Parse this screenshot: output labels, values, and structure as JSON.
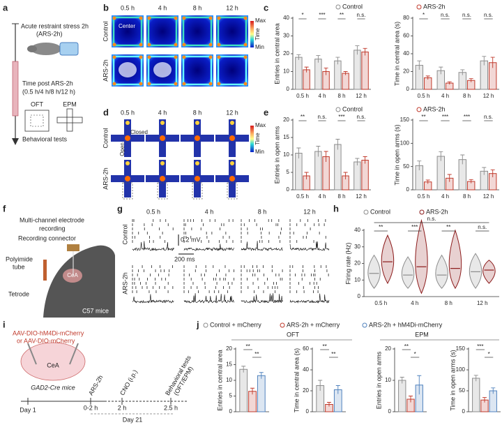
{
  "panels": {
    "letters": [
      "a",
      "b",
      "c",
      "d",
      "e",
      "f",
      "g",
      "h",
      "i",
      "j"
    ],
    "a": {
      "stress": "Acute restraint stress 2h",
      "stress_abbr": "(ARS-2h)",
      "time": "Time post ARS-2h",
      "timepoints": "(0.5 h/4 h/8 h/12 h)",
      "oft": "OFT",
      "epm": "EPM",
      "tests": "Behavioral tests"
    },
    "b": {
      "times": [
        "0.5 h",
        "4 h",
        "8 h",
        "12 h"
      ],
      "rows": [
        "Control",
        "ARS-2h"
      ],
      "center": "Center",
      "scale": [
        "Max",
        "Time",
        "Min"
      ]
    },
    "d": {
      "times": [
        "0.5 h",
        "4 h",
        "8 h",
        "12 h"
      ],
      "rows": [
        "Control",
        "ARS-2h"
      ],
      "closed": "Closed",
      "open": "Open",
      "scale": [
        "Max",
        "Time",
        "Min"
      ]
    },
    "f": {
      "lines": [
        "Multi-channel electrode",
        "recording"
      ],
      "connector": "Recording connector",
      "tube": [
        "Polyimide",
        "tube"
      ],
      "region": "CeA",
      "tetrode": "Tetrode",
      "strain": "C57 mice"
    },
    "g": {
      "times": [
        "0.5 h",
        "4 h",
        "8 h",
        "12 h"
      ],
      "rows": [
        "Control",
        "ARS-2h"
      ],
      "scale_v": "0.2 mV",
      "scale_t": "200 ms"
    },
    "i": {
      "virus": [
        "AAV-DIO-hM4Di-mCherry",
        "or AAV-DIO-mCherry"
      ],
      "region": "CeA",
      "strain": "GAD2-Cre mice",
      "events": [
        "ARS-2h",
        "CNO (i.p.)",
        "Behavioral tests",
        "(OFT/EPM)"
      ],
      "times": [
        "Day 1",
        "0-2 h",
        "2 h",
        "2.5 h"
      ],
      "day": "Day 21"
    },
    "j": {
      "groups": [
        "OFT",
        "EPM"
      ]
    }
  },
  "chart_data": [
    {
      "type": "bar",
      "ylabel": "Entries in central area",
      "categories": [
        "0.5 h",
        "4 h",
        "8 h",
        "12 h"
      ],
      "series": [
        {
          "name": "Control",
          "color": "#8c8c8c",
          "values": [
            18,
            17,
            16,
            22
          ],
          "errors": [
            1.5,
            2,
            2,
            2.5
          ]
        },
        {
          "name": "ARS-2h",
          "color": "#c0392b",
          "values": [
            11,
            10,
            9,
            21
          ],
          "errors": [
            1.5,
            2,
            1,
            2
          ]
        }
      ],
      "annotations": [
        "*",
        "***",
        "**",
        "n.s."
      ],
      "ylim": [
        0,
        40
      ],
      "yticks": [
        0,
        10,
        20,
        30,
        40
      ]
    },
    {
      "type": "bar",
      "ylabel": "Time in central area (s)",
      "categories": [
        "0.5 h",
        "4 h",
        "8 h",
        "12 h"
      ],
      "series": [
        {
          "color": "#8c8c8c",
          "values": [
            27,
            21,
            19,
            32
          ],
          "errors": [
            5,
            4,
            3,
            5
          ]
        },
        {
          "color": "#c0392b",
          "values": [
            13,
            7,
            10,
            30
          ],
          "errors": [
            2,
            1.5,
            2,
            6
          ]
        }
      ],
      "annotations": [
        "*",
        "n.s.",
        "n.s.",
        "n.s."
      ],
      "ylim": [
        0,
        80
      ],
      "yticks": [
        0,
        20,
        40,
        60,
        80
      ]
    },
    {
      "type": "bar",
      "ylabel": "Entries in open arms",
      "categories": [
        "0.5 h",
        "4 h",
        "8 h",
        "12 h"
      ],
      "series": [
        {
          "name": "Control",
          "color": "#8c8c8c",
          "values": [
            10.5,
            11,
            13,
            8
          ],
          "errors": [
            1.5,
            1.5,
            1.5,
            1
          ]
        },
        {
          "name": "ARS-2h",
          "color": "#c0392b",
          "values": [
            4,
            9.5,
            4,
            8.5
          ],
          "errors": [
            1,
            1.5,
            1,
            1
          ]
        }
      ],
      "annotations": [
        "**",
        "n.s.",
        "***",
        "n.s."
      ],
      "ylim": [
        0,
        20
      ],
      "yticks": [
        0,
        5,
        10,
        15,
        20
      ]
    },
    {
      "type": "bar",
      "ylabel": "Time in open arms (s)",
      "categories": [
        "0.5 h",
        "4 h",
        "8 h",
        "12 h"
      ],
      "series": [
        {
          "color": "#8c8c8c",
          "values": [
            52,
            72,
            65,
            40
          ],
          "errors": [
            10,
            10,
            10,
            8
          ]
        },
        {
          "color": "#c0392b",
          "values": [
            17,
            25,
            18,
            35
          ],
          "errors": [
            4,
            8,
            4,
            8
          ]
        }
      ],
      "annotations": [
        "**",
        "***",
        "***",
        "n.s."
      ],
      "ylim": [
        0,
        150
      ],
      "yticks": [
        0,
        50,
        100,
        150
      ]
    },
    {
      "type": "violin",
      "ylabel": "Firing rate (Hz)",
      "categories": [
        "0.5 h",
        "4 h",
        "8 h",
        "12 h"
      ],
      "series": [
        {
          "name": "Control",
          "color": "#8c8c8c",
          "values": [
            14,
            13,
            13,
            15
          ],
          "min": [
            5,
            5,
            5,
            5
          ],
          "max": [
            25,
            24,
            25,
            26
          ]
        },
        {
          "name": "ARS-2h",
          "color": "#8b1a1a",
          "values": [
            21,
            18,
            17,
            16
          ],
          "min": [
            8,
            2,
            5,
            8
          ],
          "max": [
            37,
            46,
            40,
            22
          ]
        }
      ],
      "annotations": [
        "**",
        "***",
        "**",
        "n.s."
      ],
      "overall_annotation": "n.s.",
      "ylim": [
        0,
        40
      ],
      "yticks": [
        0,
        10,
        20,
        30,
        40
      ]
    },
    {
      "type": "bar",
      "ylabel": "Entries in central area",
      "categories": [
        null
      ],
      "series": [
        {
          "name": "Control + mCherry",
          "color": "#8c8c8c",
          "values": [
            13.5
          ],
          "errors": [
            1
          ]
        },
        {
          "name": "ARS-2h + mCherry",
          "color": "#c0392b",
          "values": [
            6.5
          ],
          "errors": [
            1
          ]
        },
        {
          "name": "ARS-2h + hM4Di-mCherry",
          "color": "#4f81bd",
          "values": [
            11.5
          ],
          "errors": [
            1
          ]
        }
      ],
      "comparisons": [
        "**",
        "**"
      ],
      "ylim": [
        0,
        20
      ],
      "yticks": [
        0,
        5,
        10,
        15,
        20
      ]
    },
    {
      "type": "bar",
      "ylabel": "Time in central area (s)",
      "categories": [
        null
      ],
      "series": [
        {
          "color": "#8c8c8c",
          "values": [
            25
          ],
          "errors": [
            5
          ]
        },
        {
          "color": "#c0392b",
          "values": [
            7
          ],
          "errors": [
            2
          ]
        },
        {
          "color": "#4f81bd",
          "values": [
            21
          ],
          "errors": [
            4
          ]
        }
      ],
      "comparisons": [
        "**",
        "**"
      ],
      "ylim": [
        0,
        60
      ],
      "yticks": [
        0,
        20,
        40,
        60
      ]
    },
    {
      "type": "bar",
      "ylabel": "Entries in open arms",
      "categories": [
        null
      ],
      "series": [
        {
          "color": "#8c8c8c",
          "values": [
            10
          ],
          "errors": [
            1
          ]
        },
        {
          "color": "#c0392b",
          "values": [
            4
          ],
          "errors": [
            1
          ]
        },
        {
          "color": "#4f81bd",
          "values": [
            8.5
          ],
          "errors": [
            3
          ]
        }
      ],
      "comparisons": [
        "**",
        "*"
      ],
      "ylim": [
        0,
        20
      ],
      "yticks": [
        0,
        10,
        20
      ]
    },
    {
      "type": "bar",
      "ylabel": "Time in open arms (s)",
      "categories": [
        null
      ],
      "series": [
        {
          "color": "#8c8c8c",
          "values": [
            80
          ],
          "errors": [
            7
          ]
        },
        {
          "color": "#c0392b",
          "values": [
            28
          ],
          "errors": [
            6
          ]
        },
        {
          "color": "#4f81bd",
          "values": [
            50
          ],
          "errors": [
            7
          ]
        }
      ],
      "comparisons": [
        "***",
        "*"
      ],
      "ylim": [
        0,
        150
      ],
      "yticks": [
        0,
        50,
        100,
        150
      ]
    }
  ]
}
